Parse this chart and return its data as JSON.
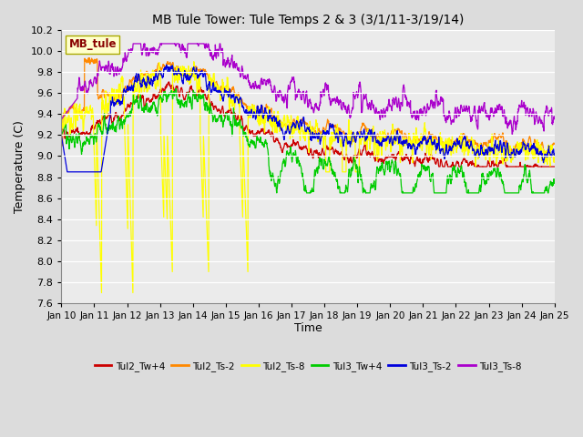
{
  "title": "MB Tule Tower: Tule Temps 2 & 3 (3/1/11-3/19/14)",
  "xlabel": "Time",
  "ylabel": "Temperature (C)",
  "xlim": [
    0,
    15
  ],
  "ylim": [
    7.6,
    10.2
  ],
  "yticks": [
    7.6,
    7.8,
    8.0,
    8.2,
    8.4,
    8.6,
    8.8,
    9.0,
    9.2,
    9.4,
    9.6,
    9.8,
    10.0,
    10.2
  ],
  "xtick_labels": [
    "Jan 10",
    "Jan 11",
    "Jan 12",
    "Jan 13",
    "Jan 14",
    "Jan 15",
    "Jan 16",
    "Jan 17",
    "Jan 18",
    "Jan 19",
    "Jan 20",
    "Jan 21",
    "Jan 22",
    "Jan 23",
    "Jan 24",
    "Jan 25"
  ],
  "bg_color": "#dcdcdc",
  "plot_bg_color": "#ebebeb",
  "series": {
    "Tul2_Tw+4": {
      "color": "#cc0000",
      "lw": 0.9
    },
    "Tul2_Ts-2": {
      "color": "#ff8800",
      "lw": 0.9
    },
    "Tul2_Ts-8": {
      "color": "#ffff00",
      "lw": 0.9
    },
    "Tul3_Tw+4": {
      "color": "#00cc00",
      "lw": 0.9
    },
    "Tul3_Ts-2": {
      "color": "#0000dd",
      "lw": 0.9
    },
    "Tul3_Ts-8": {
      "color": "#aa00cc",
      "lw": 0.9
    }
  },
  "annotation_text": "MB_tule",
  "annotation_color": "#880000",
  "annotation_bg": "#ffffcc",
  "annotation_edge": "#aaaa00"
}
